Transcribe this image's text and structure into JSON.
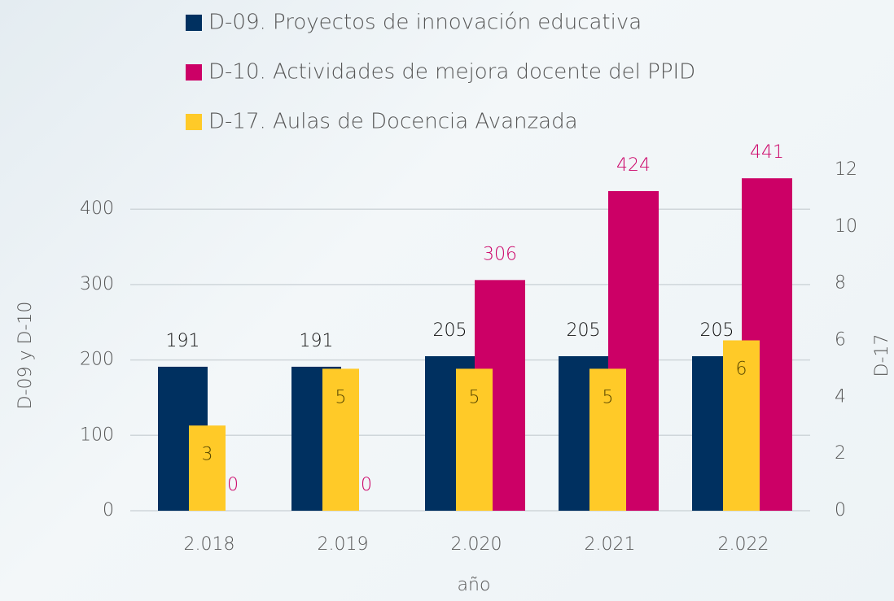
{
  "chart_data": {
    "type": "bar",
    "categories": [
      "2.018",
      "2.019",
      "2.020",
      "2.021",
      "2.022"
    ],
    "series": [
      {
        "name": "D-09. Proyectos de innovación educativa",
        "color": "#003060",
        "values": [
          191,
          191,
          205,
          205,
          205
        ]
      },
      {
        "name": "D-10. Actividades de mejora docente del PPID",
        "color": "#cc0066",
        "values": [
          0,
          0,
          306,
          424,
          441
        ]
      },
      {
        "name": "D-17. Aulas de Docencia Avanzada",
        "color": "#ffca28",
        "values": [
          3,
          5,
          5,
          5,
          6
        ],
        "axis": "y2"
      }
    ],
    "x_label": "año",
    "y_label": "D-09 y D-10",
    "y2_label": "D-17",
    "ylim": [
      0,
      452
    ],
    "yticks": [
      0,
      100,
      200,
      300,
      400
    ],
    "y2lim": [
      0,
      12
    ],
    "y2ticks": [
      0,
      2,
      4,
      6,
      8,
      10,
      12
    ],
    "grid": true
  }
}
